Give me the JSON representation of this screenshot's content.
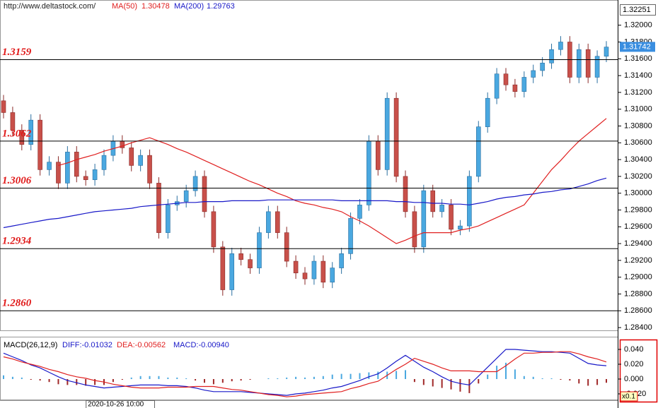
{
  "chart_data": [
    {
      "type": "candlestick",
      "source": "http://www.deltastock.com/",
      "categories": [
        null,
        null,
        null,
        null,
        null,
        null,
        null,
        null,
        null,
        "2020-10-26 10:00",
        null,
        null,
        null,
        null,
        null,
        null,
        null,
        null,
        null,
        null,
        null,
        null,
        null,
        null,
        null,
        null,
        null,
        null,
        null,
        null,
        null,
        null,
        null,
        null,
        null,
        null,
        null,
        null,
        null,
        null,
        null,
        null,
        null,
        null,
        null,
        null,
        null,
        null,
        null,
        null,
        null,
        null,
        null,
        null,
        null,
        null,
        null,
        null,
        null,
        null,
        null,
        null,
        null,
        null,
        null,
        null,
        null
      ],
      "open": [
        1.311,
        1.3096,
        1.3075,
        1.3058,
        1.3087,
        1.3028,
        1.3037,
        1.3012,
        1.3049,
        1.302,
        1.3016,
        1.3028,
        1.3045,
        1.3062,
        1.3054,
        1.3033,
        1.3045,
        1.3012,
        1.2953,
        1.2986,
        1.299,
        1.3003,
        1.302,
        1.2978,
        1.2936,
        1.2885,
        1.2928,
        1.2921,
        1.2911,
        1.2953,
        1.2978,
        1.2953,
        1.2919,
        1.2905,
        1.2898,
        1.2919,
        1.2894,
        1.2911,
        1.2928,
        1.297,
        1.2986,
        1.3062,
        1.3028,
        1.3113,
        1.302,
        1.2978,
        1.2936,
        1.3003,
        1.2978,
        1.2986,
        1.2957,
        1.2961,
        1.302,
        1.3079,
        1.3113,
        1.3142,
        1.3129,
        1.3121,
        1.3138,
        1.3146,
        1.3155,
        1.3171,
        1.318,
        1.3138,
        1.3171,
        1.3138,
        1.3163
      ],
      "high": [
        1.3117,
        1.3103,
        1.3082,
        1.3094,
        1.3094,
        1.3044,
        1.3044,
        1.3056,
        1.3056,
        1.3027,
        1.3035,
        1.3052,
        1.3069,
        1.3069,
        1.3061,
        1.3052,
        1.3052,
        1.3019,
        1.2993,
        1.2997,
        1.301,
        1.3027,
        1.3027,
        1.2985,
        1.2943,
        1.2935,
        1.2935,
        1.2928,
        1.296,
        1.2985,
        1.2985,
        1.296,
        1.2926,
        1.2912,
        1.2926,
        1.2926,
        1.2918,
        1.2935,
        1.2977,
        1.2993,
        1.3069,
        1.3069,
        1.312,
        1.312,
        1.3027,
        1.2985,
        1.301,
        1.301,
        1.2993,
        1.2993,
        1.2968,
        1.3027,
        1.3086,
        1.312,
        1.3149,
        1.3149,
        1.3136,
        1.3145,
        1.3153,
        1.3162,
        1.3178,
        1.3187,
        1.3187,
        1.3178,
        1.3178,
        1.317,
        1.3181
      ],
      "low": [
        1.3089,
        1.3068,
        1.3051,
        1.3051,
        1.3021,
        1.3021,
        1.3005,
        1.3005,
        1.3013,
        1.3009,
        1.3009,
        1.3021,
        1.3038,
        1.3047,
        1.3026,
        1.3026,
        1.3005,
        1.2946,
        1.2946,
        1.2979,
        1.2983,
        1.2996,
        1.2971,
        1.2929,
        1.2878,
        1.2878,
        1.2914,
        1.2904,
        1.2904,
        1.2946,
        1.2946,
        1.2912,
        1.2898,
        1.2891,
        1.2891,
        1.2887,
        1.2887,
        1.2904,
        1.2921,
        1.2963,
        1.2979,
        1.3021,
        1.3021,
        1.3013,
        1.2971,
        1.2929,
        1.2929,
        1.2971,
        1.2971,
        1.295,
        1.295,
        1.2954,
        1.3013,
        1.3072,
        1.3106,
        1.3122,
        1.3114,
        1.3114,
        1.3131,
        1.3139,
        1.3148,
        1.3164,
        1.3131,
        1.3131,
        1.3131,
        1.3131,
        1.3156
      ],
      "close": [
        1.3096,
        1.3075,
        1.3058,
        1.3087,
        1.3028,
        1.3037,
        1.3012,
        1.3049,
        1.302,
        1.3016,
        1.3028,
        1.3045,
        1.3062,
        1.3054,
        1.3033,
        1.3045,
        1.3012,
        1.2953,
        1.2986,
        1.299,
        1.3003,
        1.302,
        1.2978,
        1.2936,
        1.2885,
        1.2928,
        1.2921,
        1.2911,
        1.2953,
        1.2978,
        1.2953,
        1.2919,
        1.2905,
        1.2898,
        1.2919,
        1.2894,
        1.2911,
        1.2928,
        1.297,
        1.2986,
        1.3062,
        1.3028,
        1.3113,
        1.302,
        1.2978,
        1.2936,
        1.3003,
        1.2978,
        1.2986,
        1.2957,
        1.2961,
        1.302,
        1.3079,
        1.3113,
        1.3142,
        1.3129,
        1.3121,
        1.3138,
        1.3146,
        1.3155,
        1.3171,
        1.318,
        1.3138,
        1.3171,
        1.3138,
        1.3163,
        1.3174
      ],
      "up_color": "#4aa8e0",
      "down_color": "#c8504a",
      "series": [
        {
          "name": "MA(50)",
          "legend_value": "1.30478",
          "color": "#e02020",
          "values": [
            null,
            null,
            null,
            null,
            null,
            null,
            1.3033,
            1.3036,
            1.304,
            1.3043,
            1.3046,
            1.305,
            1.3053,
            1.3056,
            1.306,
            1.3063,
            1.3066,
            1.3062,
            1.3058,
            1.3053,
            1.3049,
            1.3044,
            1.3039,
            1.3034,
            1.3029,
            1.3024,
            1.3019,
            1.3014,
            1.301,
            1.3005,
            1.3,
            1.2996,
            1.2991,
            1.2988,
            1.2986,
            1.2983,
            1.2981,
            1.2978,
            1.2972,
            1.2967,
            1.2961,
            1.2954,
            1.2947,
            1.294,
            1.2944,
            1.2949,
            1.2953,
            1.2953,
            1.2953,
            1.2953,
            1.2956,
            1.2958,
            1.2961,
            1.2966,
            1.2971,
            1.2976,
            1.2981,
            1.2986,
            1.3,
            1.3014,
            1.3028,
            1.3039,
            1.3051,
            1.3062,
            1.3071,
            1.308,
            1.3089
          ]
        },
        {
          "name": "MA(200)",
          "legend_value": "1.29763",
          "color": "#1818c8",
          "values": [
            1.2959,
            1.2961,
            1.2963,
            1.2965,
            1.2967,
            1.2969,
            1.297,
            1.2972,
            1.2974,
            1.2976,
            1.2978,
            1.2979,
            1.298,
            1.2981,
            1.2982,
            1.2984,
            1.2985,
            1.2986,
            1.2987,
            1.2988,
            1.2989,
            1.2989,
            1.299,
            1.299,
            1.299,
            1.2991,
            1.2991,
            1.2991,
            1.2991,
            1.2992,
            1.2992,
            1.2992,
            1.2992,
            1.2992,
            1.2992,
            1.2992,
            1.2992,
            1.2991,
            1.2991,
            1.2991,
            1.2991,
            1.2991,
            1.2991,
            1.299,
            1.299,
            1.2989,
            1.2989,
            1.2988,
            1.2988,
            1.2987,
            1.2987,
            1.2986,
            1.2988,
            1.299,
            1.2993,
            1.2995,
            1.2996,
            1.2998,
            1.2999,
            1.3001,
            1.3002,
            1.3004,
            1.3005,
            1.3008,
            1.3011,
            1.3015,
            1.3018
          ]
        }
      ],
      "levels": [
        1.3159,
        1.3062,
        1.3006,
        1.2934,
        {
          "value": 1.286,
          "label": "1.2860"
        }
      ],
      "ylim": [
        1.28367,
        1.323
      ],
      "yticks": [
        {
          "value": 1.32,
          "label": "1.32000"
        },
        {
          "value": 1.318,
          "label": "1.31800"
        },
        {
          "value": 1.316,
          "label": "1.31600"
        },
        {
          "value": 1.314,
          "label": "1.31400"
        },
        {
          "value": 1.312,
          "label": "1.31200"
        },
        {
          "value": 1.31,
          "label": "1.31000"
        },
        {
          "value": 1.308,
          "label": "1.30800"
        },
        {
          "value": 1.306,
          "label": "1.30600"
        },
        {
          "value": 1.304,
          "label": "1.30400"
        },
        {
          "value": 1.302,
          "label": "1.30200"
        },
        {
          "value": 1.3,
          "label": "1.30000"
        },
        {
          "value": 1.298,
          "label": "1.29800"
        },
        {
          "value": 1.296,
          "label": "1.29600"
        },
        {
          "value": 1.294,
          "label": "1.29400"
        },
        {
          "value": 1.292,
          "label": "1.29200"
        },
        {
          "value": 1.29,
          "label": "1.29000"
        },
        {
          "value": 1.288,
          "label": "1.28800"
        },
        {
          "value": 1.286,
          "label": "1.28600"
        },
        {
          "value": 1.284,
          "label": "1.28400"
        }
      ],
      "axis_top_label": "1.32251",
      "last_price": 1.31742,
      "last_price_color": "#3a8ee0"
    },
    {
      "type": "macd",
      "title": "MACD(26,12,9)",
      "histogram": {
        "name": "MACD:-0.00940",
        "up_color": "#4aa8e0",
        "down_color": "#a02828",
        "values": [
          0.005,
          0.003,
          0.002,
          -0.001,
          -0.002,
          -0.004,
          -0.007,
          -0.008,
          -0.008,
          -0.009,
          -0.008,
          -0.008,
          -0.004,
          -0.001,
          0.002,
          0.004,
          0.004,
          0.004,
          0.002,
          0.002,
          0.001,
          -0.002,
          -0.005,
          -0.007,
          -0.005,
          -0.003,
          -0.002,
          -0.001,
          0,
          0.001,
          0.001,
          0.002,
          0.003,
          0.002,
          0.003,
          0.004,
          0.006,
          0.007,
          0.007,
          0.008,
          0.009,
          0.01,
          0.01,
          0.011,
          0.012,
          -0.004,
          -0.008,
          -0.01,
          -0.012,
          -0.014,
          -0.017,
          -0.019,
          -0.006,
          0.006,
          0.018,
          0.022,
          0.013,
          0.004,
          0.003,
          0.001,
          0.001,
          -0.001,
          -0.002,
          -0.006,
          -0.009,
          -0.008,
          -0.005
        ]
      },
      "series": [
        {
          "name": "DIFF:-0.01032",
          "color": "#1818c8",
          "values": [
            0.035,
            0.03,
            0.025,
            0.019,
            0.015,
            0.009,
            0.003,
            -0.002,
            -0.005,
            -0.008,
            -0.01,
            -0.012,
            -0.011,
            -0.01,
            -0.009,
            -0.008,
            -0.008,
            -0.008,
            -0.009,
            -0.009,
            -0.01,
            -0.012,
            -0.015,
            -0.017,
            -0.017,
            -0.017,
            -0.017,
            -0.018,
            -0.019,
            -0.02,
            -0.021,
            -0.022,
            -0.02,
            -0.019,
            -0.017,
            -0.015,
            -0.012,
            -0.01,
            -0.006,
            -0.002,
            0.003,
            0.007,
            0.015,
            0.024,
            0.032,
            0.024,
            0.016,
            0.01,
            0.003,
            -0.003,
            -0.006,
            -0.008,
            0.004,
            0.016,
            0.028,
            0.04,
            0.04,
            0.039,
            0.038,
            0.037,
            0.037,
            0.036,
            0.035,
            0.028,
            0.021,
            0.019,
            0.018
          ]
        },
        {
          "name": "DEA:-0.00562",
          "color": "#e02020",
          "values": [
            0.03,
            0.027,
            0.023,
            0.02,
            0.017,
            0.013,
            0.01,
            0.006,
            0.003,
            0.001,
            -0.002,
            -0.004,
            -0.007,
            -0.009,
            -0.011,
            -0.012,
            -0.012,
            -0.012,
            -0.011,
            -0.011,
            -0.011,
            -0.01,
            -0.01,
            -0.01,
            -0.012,
            -0.014,
            -0.015,
            -0.017,
            -0.019,
            -0.021,
            -0.022,
            -0.024,
            -0.023,
            -0.021,
            -0.02,
            -0.019,
            -0.018,
            -0.017,
            -0.013,
            -0.01,
            -0.006,
            -0.003,
            0.005,
            0.013,
            0.02,
            0.028,
            0.024,
            0.02,
            0.015,
            0.011,
            0.011,
            0.011,
            0.01,
            0.01,
            0.01,
            0.018,
            0.027,
            0.035,
            0.035,
            0.036,
            0.036,
            0.037,
            0.037,
            0.034,
            0.03,
            0.027,
            0.023
          ]
        }
      ],
      "ylim": [
        -0.0267,
        0.0543
      ],
      "yticks": [
        {
          "value": 0.04,
          "label": "0.040"
        },
        {
          "value": 0.02,
          "label": "0.020"
        },
        {
          "value": 0,
          "label": "0.000"
        },
        {
          "value": -0.02,
          "label": "-0.020"
        }
      ],
      "scale_label": "x0.1"
    }
  ]
}
